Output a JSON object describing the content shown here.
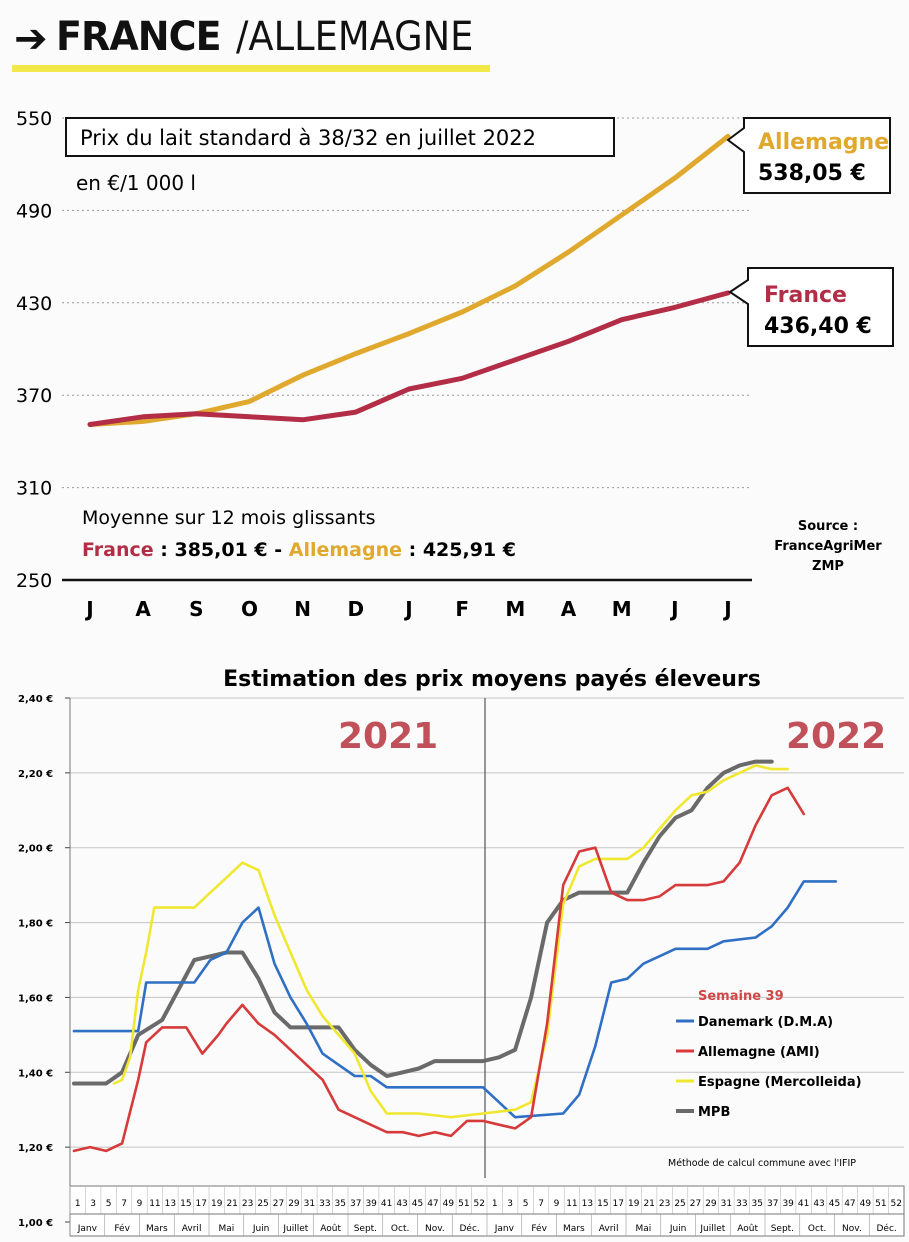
{
  "header": {
    "arrow": "➔",
    "country1": "FRANCE",
    "slash": "/",
    "country2": "ALLEMAGNE",
    "accent_color": "#f2e84a"
  },
  "chart_data": [
    {
      "type": "line",
      "title": "Prix du lait standard à 38/32 en juillet 2022",
      "subtitle": "en €/1 000 l",
      "categories": [
        "J",
        "A",
        "S",
        "O",
        "N",
        "D",
        "J",
        "F",
        "M",
        "A",
        "M",
        "J",
        "J"
      ],
      "ylim": [
        250,
        550
      ],
      "yticks": [
        250,
        310,
        370,
        430,
        490,
        550
      ],
      "series": [
        {
          "name": "Allemagne",
          "color": "#e0a92e",
          "values": [
            351,
            353,
            358,
            366,
            383,
            397,
            410,
            424,
            441,
            463,
            487,
            511,
            538.05
          ]
        },
        {
          "name": "France",
          "color": "#b22d45",
          "values": [
            351,
            356,
            358,
            356,
            354,
            359,
            374,
            381,
            393,
            405,
            419,
            427,
            436.4
          ]
        }
      ],
      "callouts": {
        "allemagne": {
          "label": "Allemagne",
          "value": "538,05 €"
        },
        "france": {
          "label": "France",
          "value": "436,40 €"
        }
      },
      "average": {
        "title": "Moyenne sur 12 mois glissants",
        "france_label": "France",
        "france_value": " : 385,01 €",
        "sep": " - ",
        "allemagne_label": "Allemagne",
        "allemagne_value": " : 425,91 €"
      },
      "source": [
        "Source :",
        "FranceAgriMer",
        "ZMP"
      ]
    },
    {
      "type": "line",
      "title": "Estimation des prix moyens payés éleveurs",
      "year_labels": [
        "2021",
        "2022"
      ],
      "year_color": "#c0505a",
      "ylim": [
        1.0,
        2.4
      ],
      "yticks": [
        "1,00 €",
        "1,20 €",
        "1,40 €",
        "1,60 €",
        "1,80 €",
        "2,00 €",
        "2,20 €",
        "2,40 €"
      ],
      "week_ticks": [
        "1",
        "3",
        "5",
        "7",
        "9",
        "11",
        "13",
        "15",
        "17",
        "19",
        "21",
        "23",
        "25",
        "27",
        "29",
        "31",
        "33",
        "35",
        "37",
        "39",
        "41",
        "43",
        "45",
        "47",
        "49",
        "51",
        "52",
        "1",
        "3",
        "5",
        "7",
        "9",
        "11",
        "13",
        "15",
        "17",
        "19",
        "21",
        "23",
        "25",
        "27",
        "29",
        "31",
        "33",
        "35",
        "37",
        "39",
        "41",
        "43",
        "45",
        "47",
        "49",
        "51",
        "52"
      ],
      "month_labels": [
        "Janv",
        "Fév",
        "Mars",
        "Avril",
        "Mai",
        "Juin",
        "Juillet",
        "Août",
        "Sept.",
        "Oct.",
        "Nov.",
        "Déc.",
        "Janv",
        "Fév",
        "Mars",
        "Avril",
        "Mai",
        "Juin",
        "Juillet",
        "Août",
        "Sept.",
        "Oct.",
        "Nov.",
        "Déc."
      ],
      "legend_title": "Semaine 39",
      "legend_title_color": "#d04848",
      "note": "Méthode de calcul commune avec l'IFIP",
      "series": [
        {
          "name": "Danemark (D.M.A)",
          "color": "#2f6fc4",
          "points": [
            [
              1,
              1.51
            ],
            [
              9,
              1.51
            ],
            [
              10,
              1.64
            ],
            [
              16,
              1.64
            ],
            [
              18,
              1.7
            ],
            [
              20,
              1.72
            ],
            [
              22,
              1.8
            ],
            [
              24,
              1.84
            ],
            [
              26,
              1.69
            ],
            [
              28,
              1.6
            ],
            [
              30,
              1.53
            ],
            [
              32,
              1.45
            ],
            [
              34,
              1.42
            ],
            [
              36,
              1.39
            ],
            [
              38,
              1.39
            ],
            [
              40,
              1.36
            ],
            [
              44,
              1.36
            ],
            [
              48,
              1.36
            ],
            [
              52,
              1.36
            ],
            [
              54,
              1.32
            ],
            [
              56,
              1.28
            ],
            [
              62,
              1.29
            ],
            [
              64,
              1.34
            ],
            [
              66,
              1.47
            ],
            [
              68,
              1.64
            ],
            [
              70,
              1.65
            ],
            [
              72,
              1.69
            ],
            [
              74,
              1.71
            ],
            [
              76,
              1.73
            ],
            [
              80,
              1.73
            ],
            [
              82,
              1.75
            ],
            [
              86,
              1.76
            ],
            [
              88,
              1.79
            ],
            [
              90,
              1.84
            ],
            [
              92,
              1.91
            ],
            [
              96,
              1.91
            ]
          ]
        },
        {
          "name": "Allemagne (AMI)",
          "color": "#d63a3a",
          "points": [
            [
              1,
              1.19
            ],
            [
              3,
              1.2
            ],
            [
              5,
              1.19
            ],
            [
              7,
              1.21
            ],
            [
              9,
              1.38
            ],
            [
              10,
              1.48
            ],
            [
              12,
              1.52
            ],
            [
              15,
              1.52
            ],
            [
              17,
              1.45
            ],
            [
              19,
              1.5
            ],
            [
              20,
              1.53
            ],
            [
              22,
              1.58
            ],
            [
              24,
              1.53
            ],
            [
              26,
              1.5
            ],
            [
              28,
              1.46
            ],
            [
              30,
              1.42
            ],
            [
              32,
              1.38
            ],
            [
              34,
              1.3
            ],
            [
              36,
              1.28
            ],
            [
              38,
              1.26
            ],
            [
              40,
              1.24
            ],
            [
              42,
              1.24
            ],
            [
              44,
              1.23
            ],
            [
              46,
              1.24
            ],
            [
              48,
              1.23
            ],
            [
              50,
              1.27
            ],
            [
              52,
              1.27
            ],
            [
              54,
              1.26
            ],
            [
              56,
              1.25
            ],
            [
              58,
              1.28
            ],
            [
              60,
              1.53
            ],
            [
              62,
              1.9
            ],
            [
              64,
              1.99
            ],
            [
              66,
              2.0
            ],
            [
              68,
              1.88
            ],
            [
              70,
              1.86
            ],
            [
              72,
              1.86
            ],
            [
              74,
              1.87
            ],
            [
              76,
              1.9
            ],
            [
              80,
              1.9
            ],
            [
              82,
              1.91
            ],
            [
              84,
              1.96
            ],
            [
              86,
              2.06
            ],
            [
              88,
              2.14
            ],
            [
              90,
              2.16
            ],
            [
              92,
              2.09
            ]
          ]
        },
        {
          "name": "Espagne (Mercolleida)",
          "color": "#f0e830",
          "points": [
            [
              6,
              1.37
            ],
            [
              7,
              1.38
            ],
            [
              8,
              1.44
            ],
            [
              9,
              1.62
            ],
            [
              10,
              1.72
            ],
            [
              11,
              1.84
            ],
            [
              16,
              1.84
            ],
            [
              18,
              1.88
            ],
            [
              20,
              1.92
            ],
            [
              22,
              1.96
            ],
            [
              24,
              1.94
            ],
            [
              26,
              1.82
            ],
            [
              28,
              1.72
            ],
            [
              30,
              1.62
            ],
            [
              32,
              1.55
            ],
            [
              34,
              1.5
            ],
            [
              36,
              1.45
            ],
            [
              38,
              1.35
            ],
            [
              40,
              1.29
            ],
            [
              44,
              1.29
            ],
            [
              48,
              1.28
            ],
            [
              52,
              1.29
            ],
            [
              56,
              1.3
            ],
            [
              58,
              1.32
            ],
            [
              60,
              1.5
            ],
            [
              62,
              1.85
            ],
            [
              64,
              1.95
            ],
            [
              66,
              1.97
            ],
            [
              70,
              1.97
            ],
            [
              72,
              2.0
            ],
            [
              74,
              2.05
            ],
            [
              76,
              2.1
            ],
            [
              78,
              2.14
            ],
            [
              80,
              2.15
            ],
            [
              82,
              2.18
            ],
            [
              84,
              2.2
            ],
            [
              86,
              2.22
            ],
            [
              88,
              2.21
            ],
            [
              90,
              2.21
            ]
          ]
        },
        {
          "name": "MPB",
          "color": "#6a6a6a",
          "points": [
            [
              1,
              1.37
            ],
            [
              5,
              1.37
            ],
            [
              7,
              1.4
            ],
            [
              9,
              1.5
            ],
            [
              12,
              1.54
            ],
            [
              14,
              1.62
            ],
            [
              16,
              1.7
            ],
            [
              18,
              1.71
            ],
            [
              20,
              1.72
            ],
            [
              22,
              1.72
            ],
            [
              24,
              1.65
            ],
            [
              26,
              1.56
            ],
            [
              28,
              1.52
            ],
            [
              30,
              1.52
            ],
            [
              34,
              1.52
            ],
            [
              36,
              1.46
            ],
            [
              38,
              1.42
            ],
            [
              40,
              1.39
            ],
            [
              42,
              1.4
            ],
            [
              44,
              1.41
            ],
            [
              46,
              1.43
            ],
            [
              50,
              1.43
            ],
            [
              52,
              1.43
            ],
            [
              54,
              1.44
            ],
            [
              56,
              1.46
            ],
            [
              58,
              1.6
            ],
            [
              60,
              1.8
            ],
            [
              62,
              1.86
            ],
            [
              64,
              1.88
            ],
            [
              66,
              1.88
            ],
            [
              70,
              1.88
            ],
            [
              72,
              1.96
            ],
            [
              74,
              2.03
            ],
            [
              76,
              2.08
            ],
            [
              78,
              2.1
            ],
            [
              80,
              2.16
            ],
            [
              82,
              2.2
            ],
            [
              84,
              2.22
            ],
            [
              86,
              2.23
            ],
            [
              88,
              2.23
            ]
          ]
        }
      ]
    }
  ]
}
